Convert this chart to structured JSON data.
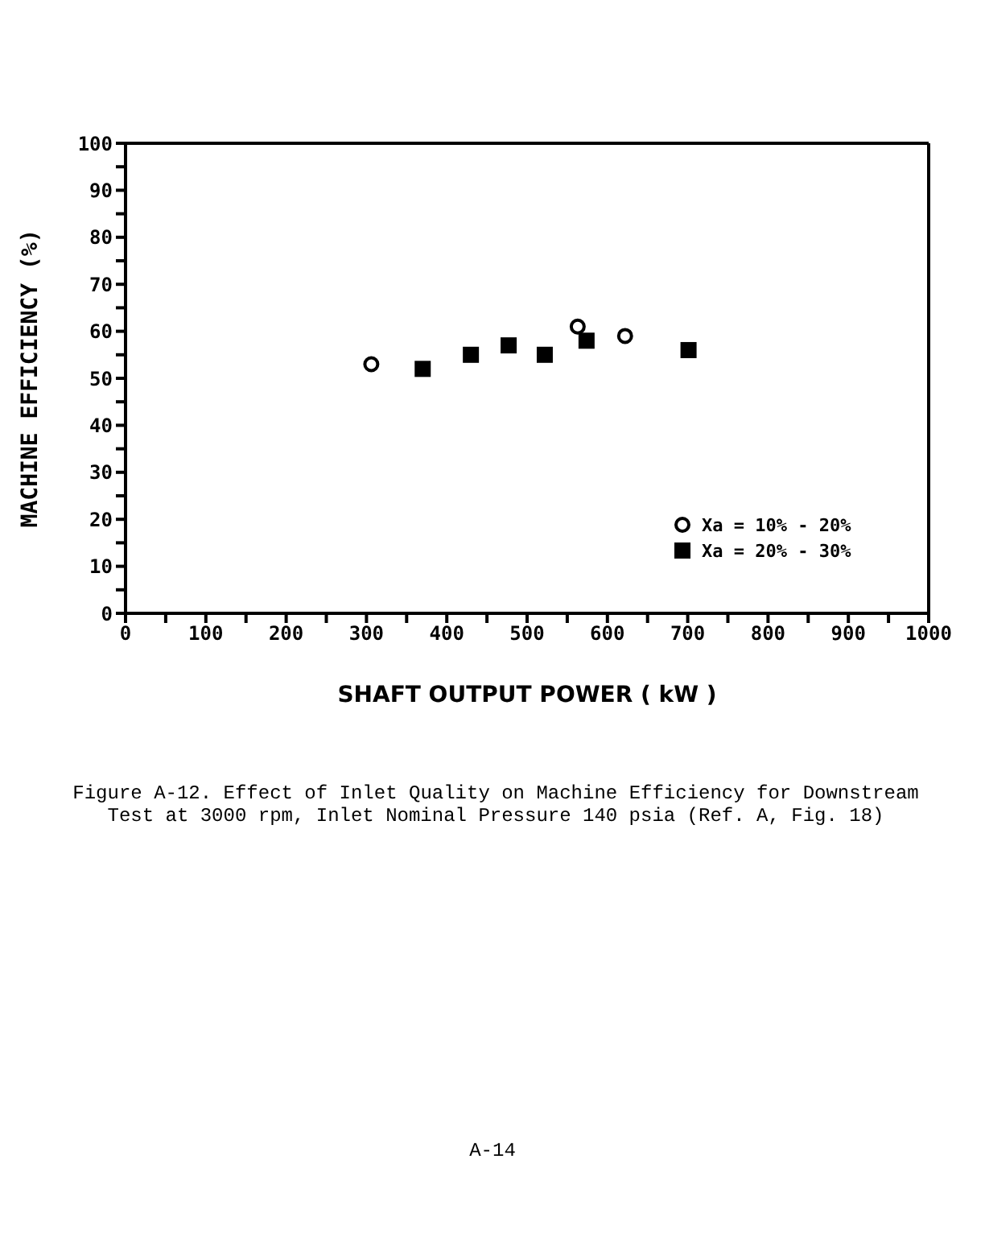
{
  "chart_data": {
    "type": "scatter",
    "xlabel": "SHAFT OUTPUT POWER ( kW )",
    "ylabel": "MACHINE EFFICIENCY (%)",
    "annotations": [
      "Figure A-12.  Effect of Inlet Quality on Machine Efficiency for Downstream",
      "Test at 3000 rpm, Inlet Nominal Pressure 140 psia (Ref. A, Fig. 18)",
      "A-14"
    ],
    "series": [
      {
        "name": "Xa = 10% - 20%",
        "color": "#000000",
        "marker": "circle",
        "x": [
          306,
          563,
          622
        ],
        "values": [
          53,
          61,
          59
        ]
      },
      {
        "name": "Xa = 20% - 30%",
        "color": "#000000",
        "marker": "square",
        "x": [
          370,
          430,
          477,
          522,
          574,
          701
        ],
        "values": [
          52,
          55,
          57,
          55,
          58,
          56
        ]
      }
    ],
    "xlim": [
      0,
      1000
    ],
    "ylim": [
      0,
      100
    ],
    "xticks": [
      0,
      {
        "value": 50,
        "label": null
      },
      100,
      {
        "value": 150,
        "label": null
      },
      200,
      {
        "value": 250,
        "label": null
      },
      300,
      {
        "value": 350,
        "label": null
      },
      400,
      {
        "value": 450,
        "label": null
      },
      500,
      {
        "value": 550,
        "label": null
      },
      600,
      {
        "value": 650,
        "label": null
      },
      700,
      {
        "value": 750,
        "label": null
      },
      800,
      {
        "value": 850,
        "label": null
      },
      900,
      {
        "value": 950,
        "label": null
      },
      1000
    ],
    "yticks": [
      0,
      {
        "value": 5,
        "label": null
      },
      10,
      {
        "value": 15,
        "label": null
      },
      20,
      {
        "value": 25,
        "label": null
      },
      30,
      {
        "value": 35,
        "label": null
      },
      40,
      {
        "value": 45,
        "label": null
      },
      50,
      {
        "value": 55,
        "label": null
      },
      60,
      {
        "value": 65,
        "label": null
      },
      70,
      {
        "value": 75,
        "label": null
      },
      80,
      {
        "value": 85,
        "label": null
      },
      90,
      {
        "value": 95,
        "label": null
      },
      100
    ],
    "legend": "right"
  }
}
